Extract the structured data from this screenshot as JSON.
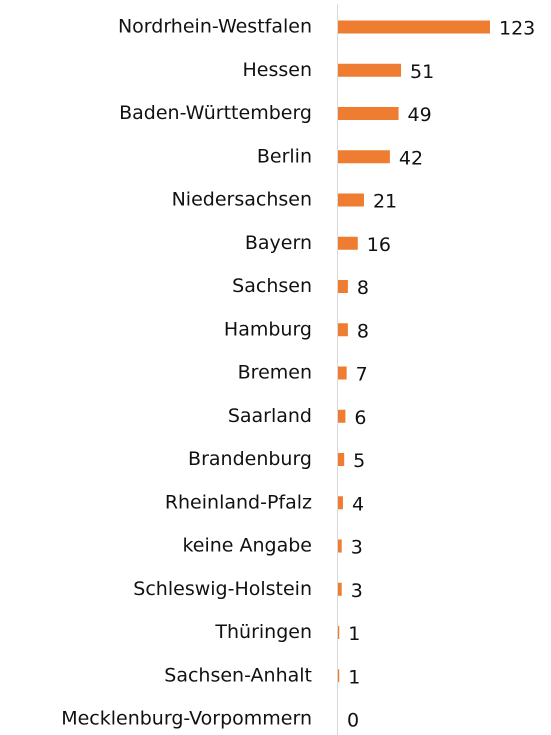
{
  "chart_data": {
    "type": "barh",
    "categories": [
      "Nordrhein-Westfalen",
      "Hessen",
      "Baden-Württemberg",
      "Berlin",
      "Niedersachsen",
      "Bayern",
      "Sachsen",
      "Hamburg",
      "Bremen",
      "Saarland",
      "Brandenburg",
      "Rheinland-Pfalz",
      "keine Angabe",
      "Schleswig-Holstein",
      "Thüringen",
      "Sachsen-Anhalt",
      "Mecklenburg-Vorpommern"
    ],
    "values": [
      123,
      51,
      49,
      42,
      21,
      16,
      8,
      8,
      7,
      6,
      5,
      4,
      3,
      3,
      1,
      1,
      0
    ],
    "color": "#ee7d31"
  }
}
